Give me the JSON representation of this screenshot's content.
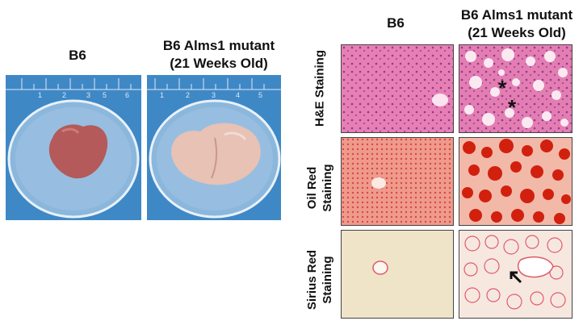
{
  "photo_labels": {
    "left": "B6",
    "right_line1": "B6 Alms1 mutant",
    "right_line2": "(21 Weeks Old)"
  },
  "histology_headers": {
    "left": "B6",
    "right_line1": "B6 Alms1 mutant",
    "right_line2": "(21 Weeks Old)"
  },
  "row_labels": {
    "he": [
      "H&E Staining"
    ],
    "oil": [
      "Oil Red",
      "Staining"
    ],
    "sirius": [
      "Sirius Red",
      "Staining"
    ]
  },
  "ruler_numbers": [
    "1",
    "2",
    "3",
    "4",
    "5",
    "6"
  ],
  "annotations": {
    "star": "*"
  },
  "colors": {
    "background_blue": "#3f88c6",
    "he_pink": "#e77fb4",
    "oil_red": "#d2200f",
    "sirius_bg": "#efe3c8",
    "sirius_red": "#e25a6c"
  }
}
